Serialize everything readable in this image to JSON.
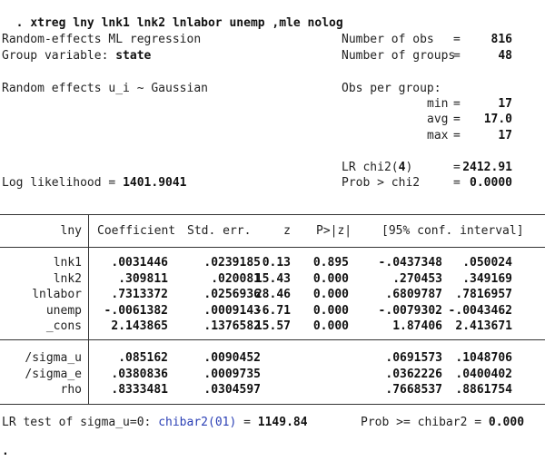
{
  "command": {
    "prompt": ".",
    "text": "xtreg lny lnk1 lnk2 lnlabor unemp ,mle nolog"
  },
  "header": {
    "title": "Random-effects ML regression",
    "group_label": "Group variable:",
    "group_value": "state",
    "re_dist": "Random effects u_i ~ Gaussian",
    "loglik_label": "Log likelihood =",
    "loglik_value": "1401.9041",
    "right": {
      "nobs_label": "Number of obs",
      "nobs_eq": "=",
      "nobs_value": "816",
      "ngroups_label": "Number of groups",
      "ngroups_eq": "=",
      "ngroups_value": "48",
      "obs_per_group": "Obs per group:",
      "min_label": "min",
      "min_eq": "=",
      "min_value": "17",
      "avg_label": "avg",
      "avg_eq": "=",
      "avg_value": "17.0",
      "max_label": "max",
      "max_eq": "=",
      "max_value": "17",
      "lr_label": "LR chi2(",
      "lr_df": "4",
      "lr_close": ")",
      "lr_eq": "=",
      "lr_value": "2412.91",
      "prob_label": "Prob > chi2",
      "prob_eq": "=",
      "prob_value": "0.0000"
    }
  },
  "table": {
    "depvar": "lny",
    "columns": [
      "Coefficient",
      "Std. err.",
      "z",
      "P>|z|",
      "[95% conf. interval]"
    ],
    "rows": [
      {
        "name": "lnk1",
        "coef": ".0031446",
        "se": ".0239185",
        "z": "0.13",
        "p": "0.895",
        "lo": "-.0437348",
        "hi": ".050024"
      },
      {
        "name": "lnk2",
        "coef": ".309811",
        "se": ".020081",
        "z": "15.43",
        "p": "0.000",
        "lo": ".270453",
        "hi": ".349169"
      },
      {
        "name": "lnlabor",
        "coef": ".7313372",
        "se": ".0256936",
        "z": "28.46",
        "p": "0.000",
        "lo": ".6809787",
        "hi": ".7816957"
      },
      {
        "name": "unemp",
        "coef": "-.0061382",
        "se": ".0009143",
        "z": "-6.71",
        "p": "0.000",
        "lo": "-.0079302",
        "hi": "-.0043462"
      },
      {
        "name": "_cons",
        "coef": "2.143865",
        "se": ".1376582",
        "z": "15.57",
        "p": "0.000",
        "lo": "1.87406",
        "hi": "2.413671"
      }
    ],
    "aux_rows": [
      {
        "name": "/sigma_u",
        "coef": ".085162",
        "se": ".0090452",
        "lo": ".0691573",
        "hi": ".1048706"
      },
      {
        "name": "/sigma_e",
        "coef": ".0380836",
        "se": ".0009735",
        "lo": ".0362226",
        "hi": ".0400402"
      },
      {
        "name": "rho",
        "coef": ".8333481",
        "se": ".0304597",
        "lo": ".7668537",
        "hi": ".8861754"
      }
    ]
  },
  "footer": {
    "lr_test_label": "LR test of sigma_u=0:",
    "chibar_label": "chibar2(01)",
    "chibar_eq": "=",
    "chibar_value": "1149.84",
    "prob_label": "Prob >= chibar2 =",
    "prob_value": "0.000"
  },
  "end_prompt": "."
}
